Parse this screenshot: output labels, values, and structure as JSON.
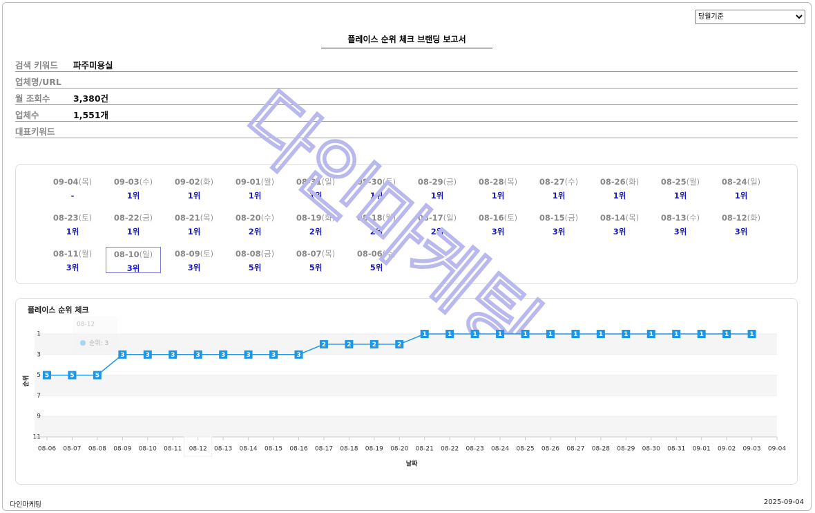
{
  "period_select": "당월기준",
  "report_title": "플레이스 순위 체크 브랜딩 보고서",
  "info": [
    {
      "label": "검색 키워드",
      "value": "파주미용실"
    },
    {
      "label": "업체명/URL"
    },
    {
      "label": "월 조회수",
      "value": "3,380건"
    },
    {
      "label": "업체수",
      "value": "1,551개"
    },
    {
      "label": "대표키워드"
    }
  ],
  "watermark": "다인마케팅",
  "calendar": [
    {
      "date": "09-04",
      "weekday": "(목)",
      "rank": "-"
    },
    {
      "date": "09-03",
      "weekday": "(수)",
      "rank": "1위"
    },
    {
      "date": "09-02",
      "weekday": "(화)",
      "rank": "1위"
    },
    {
      "date": "09-01",
      "weekday": "(월)",
      "rank": "1위"
    },
    {
      "date": "08-31",
      "weekday": "(일)",
      "rank": "1위"
    },
    {
      "date": "08-30",
      "weekday": "(토)",
      "rank": "1위"
    },
    {
      "date": "08-29",
      "weekday": "(금)",
      "rank": "1위"
    },
    {
      "date": "08-28",
      "weekday": "(목)",
      "rank": "1위"
    },
    {
      "date": "08-27",
      "weekday": "(수)",
      "rank": "1위"
    },
    {
      "date": "08-26",
      "weekday": "(화)",
      "rank": "1위"
    },
    {
      "date": "08-25",
      "weekday": "(월)",
      "rank": "1위"
    },
    {
      "date": "08-24",
      "weekday": "(일)",
      "rank": "1위"
    },
    {
      "date": "08-23",
      "weekday": "(토)",
      "rank": "1위"
    },
    {
      "date": "08-22",
      "weekday": "(금)",
      "rank": "1위"
    },
    {
      "date": "08-21",
      "weekday": "(목)",
      "rank": "1위"
    },
    {
      "date": "08-20",
      "weekday": "(수)",
      "rank": "2위"
    },
    {
      "date": "08-19",
      "weekday": "(화)",
      "rank": "2위"
    },
    {
      "date": "08-18",
      "weekday": "(월)",
      "rank": "2위"
    },
    {
      "date": "08-17",
      "weekday": "(일)",
      "rank": "2위"
    },
    {
      "date": "08-16",
      "weekday": "(토)",
      "rank": "3위"
    },
    {
      "date": "08-15",
      "weekday": "(금)",
      "rank": "3위"
    },
    {
      "date": "08-14",
      "weekday": "(목)",
      "rank": "3위"
    },
    {
      "date": "08-13",
      "weekday": "(수)",
      "rank": "3위"
    },
    {
      "date": "08-12",
      "weekday": "(화)",
      "rank": "3위"
    },
    {
      "date": "08-11",
      "weekday": "(월)",
      "rank": "3위"
    },
    {
      "date": "08-10",
      "weekday": "(일)",
      "rank": "3위",
      "selected": true
    },
    {
      "date": "08-09",
      "weekday": "(토)",
      "rank": "3위"
    },
    {
      "date": "08-08",
      "weekday": "(금)",
      "rank": "5위"
    },
    {
      "date": "08-07",
      "weekday": "(목)",
      "rank": "5위"
    },
    {
      "date": "08-06",
      "weekday": "(수)",
      "rank": "5위"
    }
  ],
  "chart_data": {
    "type": "line",
    "title": "플레이스 순위 체크",
    "xlabel": "날짜",
    "ylabel": "순위",
    "categories": [
      "08-06",
      "08-07",
      "08-08",
      "08-09",
      "08-10",
      "08-11",
      "08-12",
      "08-13",
      "08-14",
      "08-15",
      "08-16",
      "08-17",
      "08-18",
      "08-19",
      "08-20",
      "08-21",
      "08-22",
      "08-23",
      "08-24",
      "08-25",
      "08-26",
      "08-27",
      "08-28",
      "08-29",
      "08-30",
      "08-31",
      "09-01",
      "09-02",
      "09-03",
      "09-04"
    ],
    "series": [
      {
        "name": "순위",
        "color": "#1e96e6",
        "values": [
          5,
          5,
          5,
          3,
          3,
          3,
          3,
          3,
          3,
          3,
          3,
          2,
          2,
          2,
          2,
          1,
          1,
          1,
          1,
          1,
          1,
          1,
          1,
          1,
          1,
          1,
          1,
          1,
          1,
          null
        ]
      }
    ],
    "ylim": [
      1,
      11
    ],
    "yticks": [
      1,
      3,
      5,
      7,
      9,
      11
    ],
    "y_reversed": true
  },
  "footer": {
    "left": "다인마케팅",
    "right": "2025-09-04"
  }
}
